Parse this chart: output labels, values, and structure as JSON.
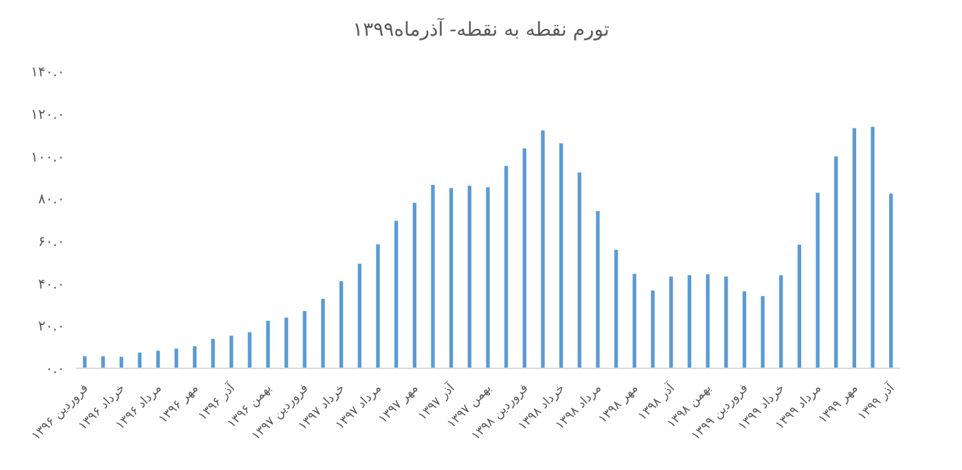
{
  "chart_data": {
    "type": "bar",
    "title": "تورم نقطه به نقطه- آذرماه۱۳۹۹",
    "categories": [
      "فروردین ۱۳۹۶",
      null,
      "خرداد ۱۳۹۶",
      null,
      "مرداد ۱۳۹۶",
      null,
      "مهر ۱۳۹۶",
      null,
      "آذر ۱۳۹۶",
      null,
      "بهمن ۱۳۹۶",
      null,
      "فروردین ۱۳۹۷",
      null,
      "خرداد ۱۳۹۷",
      null,
      "مرداد ۱۳۹۷",
      null,
      "مهر ۱۳۹۷",
      null,
      "آذر ۱۳۹۷",
      null,
      "بهمن ۱۳۹۷",
      null,
      "فروردین ۱۳۹۸",
      null,
      "خرداد ۱۳۹۸",
      null,
      "مرداد ۱۳۹۸",
      null,
      "مهر ۱۳۹۸",
      null,
      "آذر ۱۳۹۸",
      null,
      "بهمن ۱۳۹۸",
      null,
      "فروردین ۱۳۹۹",
      null,
      "خرداد ۱۳۹۹",
      null,
      "مرداد ۱۳۹۹",
      null,
      "مهر ۱۳۹۹",
      null,
      "آذر ۱۳۹۹"
    ],
    "values": [
      5.7,
      5.7,
      5.4,
      7.4,
      8.3,
      9.3,
      10.4,
      13.9,
      15.4,
      17.0,
      22.4,
      23.9,
      27.0,
      32.8,
      41.1,
      49.3,
      58.5,
      69.6,
      78.0,
      86.5,
      85.0,
      86.1,
      85.4,
      95.4,
      103.7,
      112.2,
      106.1,
      92.4,
      74.1,
      55.9,
      44.6,
      36.7,
      43.3,
      43.9,
      44.3,
      43.3,
      36.3,
      34.1,
      43.9,
      58.3,
      82.8,
      100.0,
      113.3,
      113.9,
      82.4
    ],
    "color": "#5b9bd5",
    "ylim": [
      0,
      140
    ],
    "yticks": [
      {
        "value": 0,
        "label": "۰.۰"
      },
      {
        "value": 20,
        "label": "۲۰.۰"
      },
      {
        "value": 40,
        "label": "۴۰.۰"
      },
      {
        "value": 60,
        "label": "۶۰.۰"
      },
      {
        "value": 80,
        "label": "۸۰.۰"
      },
      {
        "value": 100,
        "label": "۱۰۰.۰"
      },
      {
        "value": 120,
        "label": "۱۲۰.۰"
      },
      {
        "value": 140,
        "label": "۱۴۰.۰"
      }
    ],
    "grid": false
  }
}
